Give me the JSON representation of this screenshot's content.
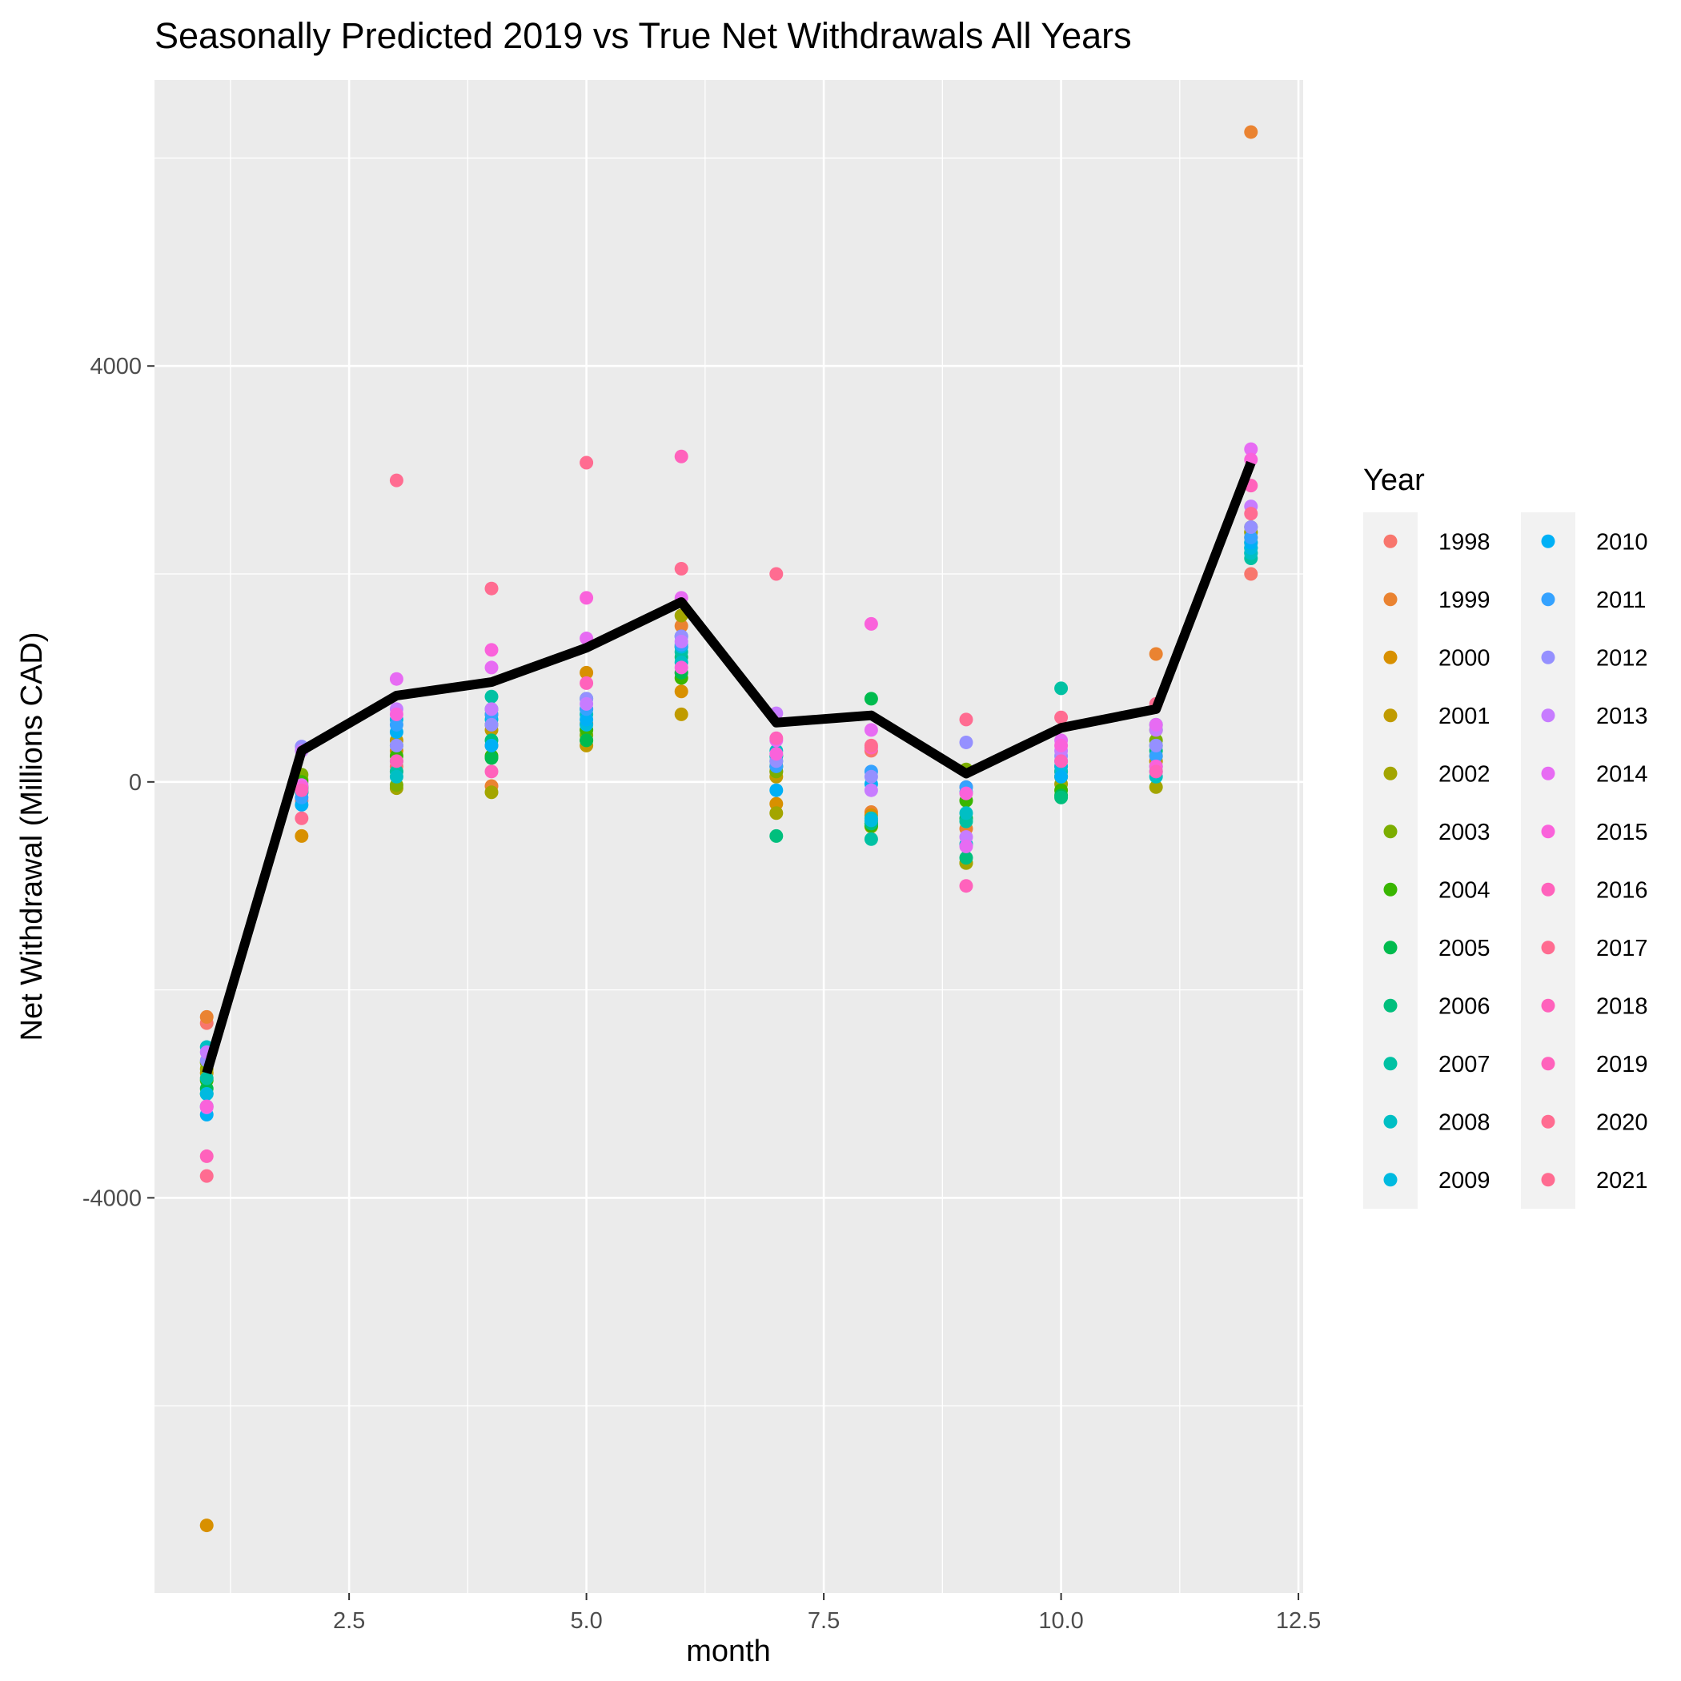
{
  "chart_data": {
    "type": "scatter",
    "title": "Seasonally Predicted 2019 vs True Net Withdrawals All Years",
    "xlabel": "month",
    "ylabel": "Net Withdrawal (Millions CAD)",
    "xlim": [
      0.45,
      12.55
    ],
    "ylim": [
      -7800,
      6750
    ],
    "x_ticks": [
      2.5,
      5.0,
      7.5,
      10.0,
      12.5
    ],
    "x_tick_labels": [
      "2.5",
      "5.0",
      "7.5",
      "10.0",
      "12.5"
    ],
    "y_ticks": [
      -4000,
      0,
      4000
    ],
    "y_tick_labels": [
      "-4000",
      "0",
      "4000"
    ],
    "grid": true,
    "legend": {
      "title": "Year",
      "position": "right"
    },
    "series": [
      {
        "name": "1998",
        "color": "#F8766D",
        "x": [
          1,
          2,
          3,
          4,
          5,
          6,
          7,
          8,
          9,
          10,
          11,
          12
        ],
        "y": [
          -2320,
          -180,
          150,
          350,
          500,
          1050,
          150,
          300,
          -50,
          150,
          200,
          2000
        ]
      },
      {
        "name": "1999",
        "color": "#EA8331",
        "x": [
          1,
          2,
          3,
          4,
          5,
          6,
          7,
          8,
          9,
          10,
          11,
          12
        ],
        "y": [
          -2260,
          -100,
          100,
          -40,
          560,
          1500,
          100,
          -290,
          -450,
          100,
          1230,
          6250
        ]
      },
      {
        "name": "2000",
        "color": "#D89000",
        "x": [
          1,
          2,
          3,
          4,
          5,
          6,
          7,
          8,
          9,
          10,
          11,
          12
        ],
        "y": [
          -7150,
          -520,
          300,
          650,
          1050,
          870,
          -210,
          -320,
          -600,
          100,
          250,
          2400
        ]
      },
      {
        "name": "2001",
        "color": "#C09B00",
        "x": [
          1,
          2,
          3,
          4,
          5,
          6,
          7,
          8,
          9,
          10,
          11,
          12
        ],
        "y": [
          -2800,
          -50,
          400,
          500,
          350,
          650,
          50,
          -380,
          -780,
          50,
          200,
          2350
        ]
      },
      {
        "name": "2002",
        "color": "#A3A500",
        "x": [
          1,
          2,
          3,
          4,
          5,
          6,
          7,
          8,
          9,
          10,
          11,
          12
        ],
        "y": [
          -2760,
          20,
          -60,
          -100,
          400,
          1600,
          -300,
          -430,
          -780,
          -20,
          -50,
          2400
        ]
      },
      {
        "name": "2003",
        "color": "#7CAE00",
        "x": [
          1,
          2,
          3,
          4,
          5,
          6,
          7,
          8,
          9,
          10,
          11,
          12
        ],
        "y": [
          -2700,
          70,
          -30,
          550,
          450,
          1300,
          100,
          -400,
          120,
          50,
          400,
          2450
        ]
      },
      {
        "name": "2004",
        "color": "#39B600",
        "x": [
          1,
          2,
          3,
          4,
          5,
          6,
          7,
          8,
          9,
          10,
          11,
          12
        ],
        "y": [
          -2870,
          0,
          250,
          250,
          500,
          1000,
          250,
          -420,
          -180,
          -80,
          500,
          2300
        ]
      },
      {
        "name": "2005",
        "color": "#00BB4E",
        "x": [
          1,
          2,
          3,
          4,
          5,
          6,
          7,
          8,
          9,
          10,
          11,
          12
        ],
        "y": [
          -2950,
          -50,
          350,
          230,
          400,
          1050,
          150,
          800,
          -350,
          -130,
          350,
          2250
        ]
      },
      {
        "name": "2006",
        "color": "#00BF7D",
        "x": [
          1,
          2,
          3,
          4,
          5,
          6,
          7,
          8,
          9,
          10,
          11,
          12
        ],
        "y": [
          -3000,
          -100,
          200,
          400,
          700,
          1200,
          -520,
          -400,
          -730,
          -150,
          300,
          2200
        ]
      },
      {
        "name": "2007",
        "color": "#00C1A3",
        "x": [
          1,
          2,
          3,
          4,
          5,
          6,
          7,
          8,
          9,
          10,
          11,
          12
        ],
        "y": [
          -2850,
          -60,
          100,
          820,
          800,
          1250,
          200,
          -550,
          -380,
          900,
          100,
          2150
        ]
      },
      {
        "name": "2008",
        "color": "#00BFC4",
        "x": [
          1,
          2,
          3,
          4,
          5,
          6,
          7,
          8,
          9,
          10,
          11,
          12
        ],
        "y": [
          -2550,
          -80,
          50,
          700,
          650,
          1150,
          300,
          -350,
          -300,
          100,
          50,
          2200
        ]
      },
      {
        "name": "2009",
        "color": "#00BAE0",
        "x": [
          1,
          2,
          3,
          4,
          5,
          6,
          7,
          8,
          9,
          10,
          11,
          12
        ],
        "y": [
          -3000,
          -100,
          600,
          600,
          550,
          1300,
          250,
          -370,
          -600,
          150,
          550,
          2250
        ]
      },
      {
        "name": "2010",
        "color": "#00B0F6",
        "x": [
          1,
          2,
          3,
          4,
          5,
          6,
          7,
          8,
          9,
          10,
          11,
          12
        ],
        "y": [
          -3200,
          -220,
          480,
          350,
          600,
          1400,
          -80,
          -20,
          -100,
          50,
          150,
          2300
        ]
      },
      {
        "name": "2011",
        "color": "#35A2FF",
        "x": [
          1,
          2,
          3,
          4,
          5,
          6,
          7,
          8,
          9,
          10,
          11,
          12
        ],
        "y": [
          -3120,
          -150,
          550,
          650,
          700,
          1320,
          150,
          100,
          -50,
          200,
          250,
          2350
        ]
      },
      {
        "name": "2012",
        "color": "#9590FF",
        "x": [
          1,
          2,
          3,
          4,
          5,
          6,
          7,
          8,
          9,
          10,
          11,
          12
        ],
        "y": [
          -2680,
          340,
          350,
          550,
          800,
          1400,
          200,
          50,
          380,
          250,
          350,
          2450
        ]
      },
      {
        "name": "2013",
        "color": "#C77CFF",
        "x": [
          1,
          2,
          3,
          4,
          5,
          6,
          7,
          8,
          9,
          10,
          11,
          12
        ],
        "y": [
          -2600,
          300,
          700,
          700,
          750,
          1350,
          660,
          -80,
          -530,
          300,
          500,
          2650
        ]
      },
      {
        "name": "2014",
        "color": "#E76BF3",
        "x": [
          1,
          2,
          3,
          4,
          5,
          6,
          7,
          8,
          9,
          10,
          11,
          12
        ],
        "y": [
          -3130,
          -30,
          990,
          1100,
          1380,
          1770,
          400,
          500,
          -620,
          400,
          550,
          3200
        ]
      },
      {
        "name": "2015",
        "color": "#FA62DB",
        "x": [
          1,
          2,
          3,
          4,
          5,
          6,
          7,
          8,
          9,
          10,
          11,
          12
        ],
        "y": [
          -3120,
          -50,
          650,
          1270,
          1770,
          1100,
          270,
          1520,
          -110,
          350,
          150,
          3100
        ]
      },
      {
        "name": "2016",
        "color": "#FF62BC",
        "x": [
          1,
          2,
          3,
          4,
          5,
          6,
          7,
          8,
          9,
          10,
          11,
          12
        ],
        "y": [
          -3600,
          -80,
          200,
          100,
          950,
          3130,
          420,
          330,
          -1000,
          200,
          100,
          2850
        ]
      },
      {
        "name": "2017",
        "color": "#FF6C91",
        "x": [
          1,
          2,
          3,
          4,
          5,
          6,
          7,
          8,
          9,
          10,
          11,
          12
        ],
        "y": [
          -3790,
          -350,
          2900,
          1860,
          3070,
          2050,
          2000,
          350,
          600,
          620,
          750,
          2580
        ]
      }
    ],
    "predicted_line": {
      "color": "#000000",
      "x": [
        1,
        2,
        3,
        4,
        5,
        6,
        7,
        8,
        9,
        10,
        11,
        12
      ],
      "y": [
        -2800,
        300,
        830,
        960,
        1290,
        1730,
        570,
        640,
        80,
        520,
        700,
        3070
      ]
    }
  },
  "legend_years": [
    "1998",
    "1999",
    "2000",
    "2001",
    "2002",
    "2003",
    "2004",
    "2005",
    "2006",
    "2007",
    "2008",
    "2009",
    "2010",
    "2011",
    "2012",
    "2013",
    "2014",
    "2015",
    "2016",
    "2017",
    "2018",
    "2019",
    "2020",
    "2021"
  ],
  "legend_colors": [
    "#F8766D",
    "#EA8331",
    "#D89000",
    "#C09B00",
    "#A3A500",
    "#7CAE00",
    "#39B600",
    "#00BB4E",
    "#00BF7D",
    "#00C1A3",
    "#00BFC4",
    "#00BAE0",
    "#00B0F6",
    "#35A2FF",
    "#9590FF",
    "#C77CFF",
    "#E76BF3",
    "#FA62DB",
    "#FF62BC",
    "#FF6C91",
    "#FF62BC",
    "#FF62BC",
    "#FF6C91",
    "#FF6C91"
  ]
}
